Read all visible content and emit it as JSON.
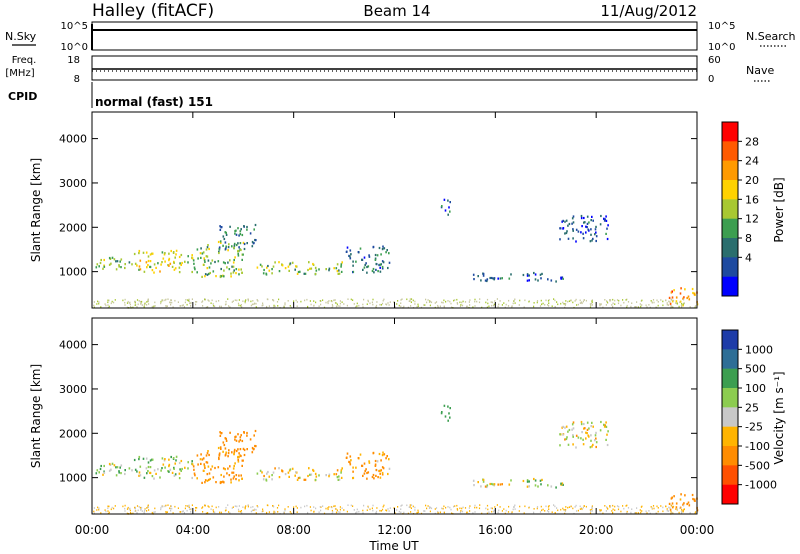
{
  "header": {
    "station": "Halley (fitACF)",
    "beam": "Beam 14",
    "date": "11/Aug/2012"
  },
  "panels": {
    "nsky": {
      "label": "N.Sky",
      "ticks": [
        "10^5",
        "10^0"
      ],
      "right_label": "N.Search",
      "right_ticks": [
        "10^5",
        "10^0"
      ]
    },
    "freq": {
      "label_line1": "Freq.",
      "label_line2": "[MHz]",
      "ticks": [
        "18",
        "8"
      ],
      "right_label": "Nave",
      "right_ticks": [
        "60",
        "0"
      ]
    },
    "cpid": {
      "label": "CPID",
      "value": "normal (fast) 151"
    }
  },
  "power_colorbar": {
    "title": "Power [dB]",
    "labels": [
      "28",
      "24",
      "20",
      "16",
      "12",
      "8",
      "4"
    ],
    "colors": [
      "#ff0000",
      "#ff5a00",
      "#ff9a00",
      "#ffd200",
      "#a8c832",
      "#3c9e50",
      "#2a6e6e",
      "#1e4aa0",
      "#0000ff"
    ]
  },
  "velocity_colorbar": {
    "title": "Velocity [m s⁻¹]",
    "labels": [
      "1000",
      "500",
      "100",
      "25",
      "-25",
      "-100",
      "-500",
      "-1000"
    ],
    "colors": [
      "#1e3ca8",
      "#2e6e96",
      "#3c9e50",
      "#8ccc50",
      "#c8c8c8",
      "#ffb400",
      "#ff8c00",
      "#ff5000",
      "#ff0000"
    ]
  },
  "chart_data": {
    "type": "heatmap",
    "xlabel": "Time UT",
    "x_ticks": [
      "00:00",
      "04:00",
      "08:00",
      "12:00",
      "16:00",
      "20:00",
      "00:00"
    ],
    "xlim_hours": [
      0,
      24
    ],
    "ylabel": "Slant Range [km]",
    "y_ticks": [
      1000,
      2000,
      3000,
      4000
    ],
    "ylim": [
      180,
      4600
    ],
    "scatter_regions": [
      {
        "t0": 0.0,
        "t1": 1.6,
        "r0": 1050,
        "r1": 1350,
        "power": 14,
        "velocity": 60
      },
      {
        "t0": 1.6,
        "t1": 4.0,
        "r0": 1000,
        "r1": 1500,
        "power": 18,
        "velocity": 40
      },
      {
        "t0": 4.0,
        "t1": 6.0,
        "r0": 900,
        "r1": 1700,
        "power": 14,
        "velocity": -150
      },
      {
        "t0": 5.0,
        "t1": 6.5,
        "r0": 1500,
        "r1": 2100,
        "power": 9,
        "velocity": -200
      },
      {
        "t0": 6.5,
        "t1": 10.0,
        "r0": 950,
        "r1": 1250,
        "power": 15,
        "velocity": -40
      },
      {
        "t0": 10.0,
        "t1": 11.8,
        "r0": 1000,
        "r1": 1600,
        "power": 8,
        "velocity": -120
      },
      {
        "t0": 13.8,
        "t1": 14.2,
        "r0": 2300,
        "r1": 2700,
        "power": 6,
        "velocity": 300
      },
      {
        "t0": 14.8,
        "t1": 16.6,
        "r0": 800,
        "r1": 1000,
        "power": 7,
        "velocity": -20
      },
      {
        "t0": 17.0,
        "t1": 18.8,
        "r0": 800,
        "r1": 1000,
        "power": 6,
        "velocity": 60
      },
      {
        "t0": 18.5,
        "t1": 20.5,
        "r0": 1700,
        "r1": 2300,
        "power": 6,
        "velocity": -10
      },
      {
        "t0": 22.8,
        "t1": 24.0,
        "r0": 250,
        "r1": 650,
        "power": 24,
        "velocity": -180
      }
    ],
    "ground_clutter": {
      "r0": 200,
      "r1": 400
    },
    "nsky_value": "10^5",
    "freq_value_mhz": 12
  }
}
